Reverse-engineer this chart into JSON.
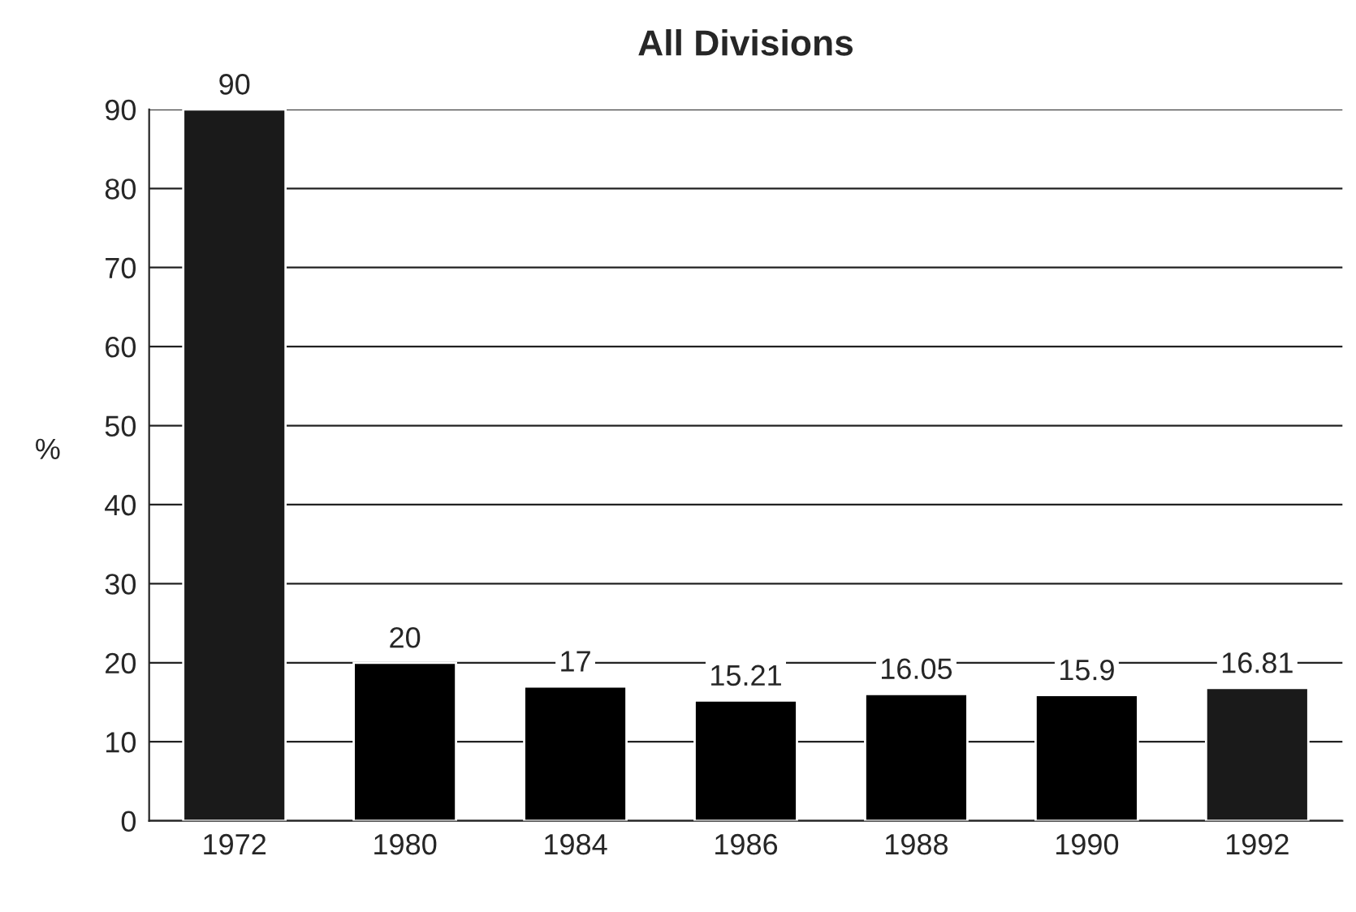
{
  "chart_data": {
    "type": "bar",
    "title": "All Divisions",
    "ylabel": "%",
    "categories": [
      "1972",
      "1980",
      "1984",
      "1986",
      "1988",
      "1990",
      "1992"
    ],
    "values": [
      90,
      20,
      17,
      15.21,
      16.05,
      15.9,
      16.81
    ],
    "colors": [
      "#1a1a1a",
      "#000000",
      "#000000",
      "#000000",
      "#000000",
      "#000000",
      "#1a1a1a"
    ],
    "ylim": [
      0,
      90
    ],
    "yticks": [
      0,
      10,
      20,
      30,
      40,
      50,
      60,
      70,
      80,
      90
    ],
    "grid": "y",
    "data_labels": true
  }
}
